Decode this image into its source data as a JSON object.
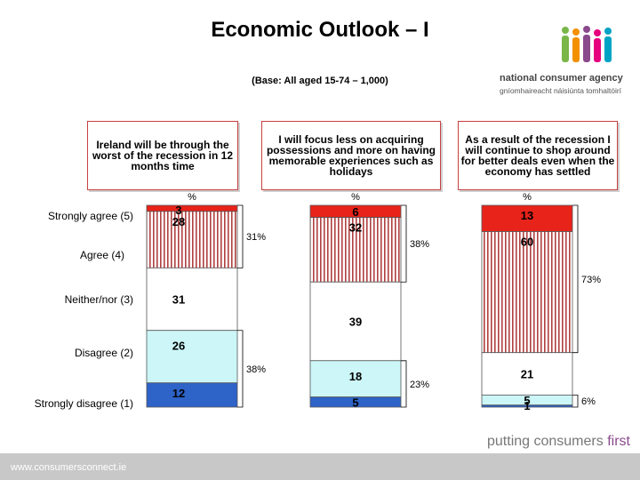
{
  "title": "Economic Outlook – I",
  "base": "(Base: All aged 15-74 – 1,000)",
  "logo": {
    "line1": "national consumer agency",
    "line2": "gníomhaireacht náisiúnta tomhaltóirí"
  },
  "tagline": {
    "word1": "putting consumers ",
    "word2": "first"
  },
  "footer_url": "www.consumersconnect.ie",
  "row_labels": [
    "Strongly agree (5)",
    "Agree (4)",
    "Neither/nor (3)",
    "Disagree (2)",
    "Strongly disagree (1)"
  ],
  "colors": {
    "strongly_agree": "#e8231a",
    "agree_bg": "#ffffff",
    "agree_stripe": "#b04040",
    "neither": "#ffffff",
    "disagree": "#ccf6f8",
    "strongly_disagree": "#2e63c8"
  },
  "chart_data": {
    "type": "bar",
    "stacked": true,
    "categories": [
      "Strongly agree (5)",
      "Agree (4)",
      "Neither/nor (3)",
      "Disagree (2)",
      "Strongly disagree (1)"
    ],
    "unit": "%",
    "bars": [
      {
        "question": "Ireland will be through the worst of the recession in 12 months time",
        "values": [
          3,
          28,
          31,
          26,
          12
        ],
        "agree_total": "31%",
        "disagree_total": "38%"
      },
      {
        "question": "I will focus less on acquiring possessions and more on having memorable experiences such as holidays",
        "values": [
          6,
          32,
          39,
          18,
          5
        ],
        "agree_total": "38%",
        "disagree_total": "23%"
      },
      {
        "question": "As a result of the recession I will continue to shop around for better deals even when the economy has settled",
        "values": [
          13,
          60,
          21,
          5,
          1
        ],
        "agree_total": "73%",
        "disagree_total": "6%"
      }
    ]
  }
}
